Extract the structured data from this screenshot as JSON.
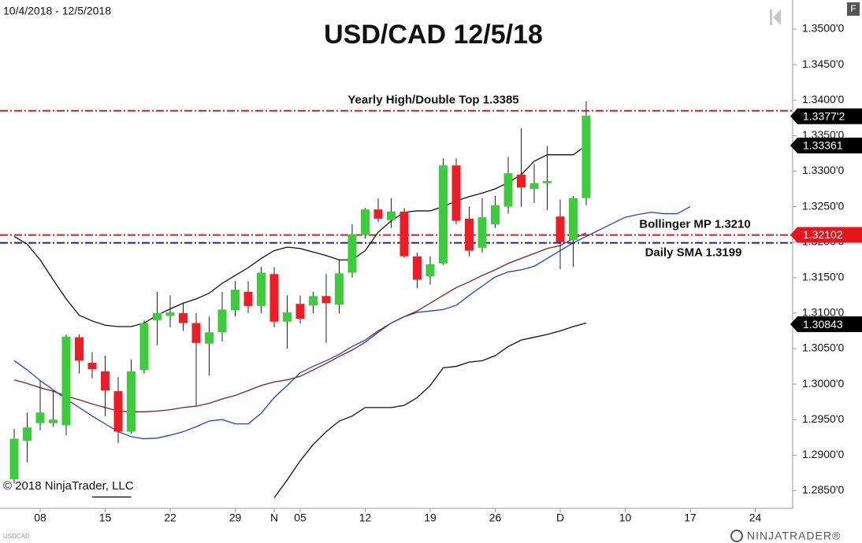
{
  "chart_data": {
    "type": "candlestick",
    "title": "USD/CAD 12/5/18",
    "date_range": "10/4/2018 - 12/5/2018",
    "copyright": "© 2018 NinjaTrader, LLC",
    "symbol": "USDCAD",
    "logo": "NINJATRADER®",
    "button": "F",
    "up_color": "#3ccc3c",
    "down_color": "#ee1c24",
    "xlim": [
      "2018-10-03",
      "2018-12-27"
    ],
    "xticks": [
      {
        "value": "2018-10-08",
        "label": "08"
      },
      {
        "value": "2018-10-15",
        "label": "15"
      },
      {
        "value": "2018-10-22",
        "label": "22"
      },
      {
        "value": "2018-10-29",
        "label": "29"
      },
      {
        "value": "2018-11-01",
        "label": "N"
      },
      {
        "value": "2018-11-05",
        "label": "05"
      },
      {
        "value": "2018-11-12",
        "label": "12"
      },
      {
        "value": "2018-11-19",
        "label": "19"
      },
      {
        "value": "2018-11-26",
        "label": "26"
      },
      {
        "value": "2018-12-03",
        "label": "D"
      },
      {
        "value": "2018-12-10",
        "label": "10"
      },
      {
        "value": "2018-12-17",
        "label": "17"
      },
      {
        "value": "2018-12-24",
        "label": "24"
      }
    ],
    "ylim": [
      1.2825,
      1.3541
    ],
    "yticks": [
      {
        "value": 1.285,
        "label": "1.2850'0"
      },
      {
        "value": 1.29,
        "label": "1.2900'0"
      },
      {
        "value": 1.295,
        "label": "1.2950'0"
      },
      {
        "value": 1.3,
        "label": "1.3000'0"
      },
      {
        "value": 1.305,
        "label": "1.3050'0"
      },
      {
        "value": 1.31,
        "label": "1.3100'0"
      },
      {
        "value": 1.315,
        "label": "1.3150'0"
      },
      {
        "value": 1.32,
        "label": "1.3200'0"
      },
      {
        "value": 1.325,
        "label": "1.3250'0"
      },
      {
        "value": 1.33,
        "label": "1.3300'0"
      },
      {
        "value": 1.335,
        "label": "1.3350'0"
      },
      {
        "value": 1.34,
        "label": "1.3400'0"
      },
      {
        "value": 1.345,
        "label": "1.3450'0"
      },
      {
        "value": 1.35,
        "label": "1.3500'0"
      }
    ],
    "x": [
      "2018-10-04",
      "2018-10-05",
      "2018-10-08",
      "2018-10-09",
      "2018-10-10",
      "2018-10-11",
      "2018-10-12",
      "2018-10-15",
      "2018-10-16",
      "2018-10-17",
      "2018-10-18",
      "2018-10-19",
      "2018-10-22",
      "2018-10-23",
      "2018-10-24",
      "2018-10-25",
      "2018-10-26",
      "2018-10-29",
      "2018-10-30",
      "2018-10-31",
      "2018-11-01",
      "2018-11-02",
      "2018-11-05",
      "2018-11-06",
      "2018-11-07",
      "2018-11-08",
      "2018-11-09",
      "2018-11-12",
      "2018-11-13",
      "2018-11-14",
      "2018-11-15",
      "2018-11-16",
      "2018-11-19",
      "2018-11-20",
      "2018-11-21",
      "2018-11-22",
      "2018-11-23",
      "2018-11-26",
      "2018-11-27",
      "2018-11-28",
      "2018-11-29",
      "2018-11-30",
      "2018-12-03",
      "2018-12-04",
      "2018-12-05",
      "2018-12-06",
      "2018-12-07",
      "2018-12-10",
      "2018-12-11",
      "2018-12-12",
      "2018-12-13",
      "2018-12-14",
      "2018-12-17"
    ],
    "ohlc": {
      "open": [
        1.2866,
        1.292,
        1.2945,
        1.2945,
        1.2942,
        1.3066,
        1.303,
        1.3018,
        1.299,
        1.2933,
        1.302,
        1.309,
        1.3096,
        1.31,
        1.3086,
        1.3057,
        1.3073,
        1.3104,
        1.313,
        1.311,
        1.3155,
        1.3088,
        1.3113,
        1.3111,
        1.3124,
        1.3112,
        1.3157,
        1.321,
        1.3246,
        1.3231,
        1.3243,
        1.318,
        1.3152,
        1.317,
        1.3308,
        1.3233,
        1.3192,
        1.3225,
        1.325,
        1.3295,
        1.3275,
        1.3283,
        1.3236,
        1.3203,
        1.3262,
        null,
        null,
        null,
        null,
        null,
        null,
        null,
        null
      ],
      "high": [
        1.2937,
        1.296,
        1.3005,
        1.299,
        1.307,
        1.307,
        1.3045,
        1.304,
        1.301,
        1.3035,
        1.309,
        1.313,
        1.3125,
        1.3115,
        1.31,
        1.3095,
        1.313,
        1.3145,
        1.3145,
        1.3165,
        1.3165,
        1.3125,
        1.3125,
        1.313,
        1.3155,
        1.3175,
        1.3225,
        1.3248,
        1.3262,
        1.3262,
        1.3248,
        1.3185,
        1.318,
        1.3318,
        1.3318,
        1.325,
        1.3262,
        1.3265,
        1.332,
        1.336,
        1.331,
        1.3335,
        1.326,
        1.3265,
        1.3398,
        null,
        null,
        null,
        null,
        null,
        null,
        null,
        null
      ],
      "low": [
        1.286,
        1.289,
        1.2935,
        1.294,
        1.2928,
        1.3015,
        1.3008,
        1.2955,
        1.2917,
        1.293,
        1.3015,
        1.3055,
        1.308,
        1.3075,
        1.297,
        1.3012,
        1.306,
        1.3095,
        1.31,
        1.31,
        1.308,
        1.305,
        1.3085,
        1.31,
        1.3058,
        1.31,
        1.315,
        1.3205,
        1.3228,
        1.322,
        1.3178,
        1.3135,
        1.314,
        1.3168,
        1.3225,
        1.318,
        1.3185,
        1.322,
        1.324,
        1.325,
        1.3255,
        1.3245,
        1.3162,
        1.3165,
        1.3252,
        null,
        null,
        null,
        null,
        null,
        null,
        null,
        null
      ],
      "close": [
        1.2923,
        1.2939,
        1.296,
        1.295,
        1.3067,
        1.3033,
        1.3021,
        1.2991,
        1.2933,
        1.3018,
        1.3086,
        1.31,
        1.3101,
        1.3086,
        1.3058,
        1.3073,
        1.3105,
        1.3133,
        1.311,
        1.3157,
        1.3088,
        1.3101,
        1.3092,
        1.3124,
        1.3114,
        1.3156,
        1.3211,
        1.3246,
        1.3233,
        1.3243,
        1.318,
        1.3147,
        1.3169,
        1.3308,
        1.323,
        1.3188,
        1.3235,
        1.3252,
        1.3297,
        1.3277,
        1.3283,
        1.3286,
        1.32,
        1.3262,
        1.3378,
        null,
        null,
        null,
        null,
        null,
        null,
        null,
        null
      ]
    },
    "lines": [
      {
        "color": "#111111",
        "values": [
          1.3208,
          1.3197,
          1.3175,
          1.3147,
          1.312,
          1.3097,
          1.3089,
          1.3083,
          1.3081,
          1.3081,
          1.3086,
          1.3097,
          1.3106,
          1.3114,
          1.312,
          1.3128,
          1.3142,
          1.3153,
          1.3164,
          1.3177,
          1.3188,
          1.3193,
          1.3191,
          1.3186,
          1.3181,
          1.3175,
          1.3175,
          1.3188,
          1.3214,
          1.323,
          1.3242,
          1.3244,
          1.3244,
          1.325,
          1.3258,
          1.3264,
          1.3269,
          1.3275,
          1.3284,
          1.3295,
          1.3314,
          1.3323,
          1.3323,
          1.3323,
          1.3336,
          null,
          null,
          null,
          null,
          null,
          null,
          null,
          null
        ]
      },
      {
        "color": "#8b1a1a",
        "values": [
          1.3006,
          1.3001,
          1.2995,
          1.299,
          1.2983,
          1.2978,
          1.2972,
          1.2967,
          1.2962,
          1.2961,
          1.2961,
          1.2962,
          1.2964,
          1.2967,
          1.2969,
          1.2973,
          1.2979,
          1.2984,
          1.2991,
          1.2998,
          1.3003,
          1.3006,
          1.3011,
          1.302,
          1.3029,
          1.3039,
          1.3048,
          1.3059,
          1.3073,
          1.3086,
          1.3095,
          1.3103,
          1.3114,
          1.3125,
          1.3136,
          1.3144,
          1.3153,
          1.3161,
          1.317,
          1.3177,
          1.3184,
          1.3191,
          1.3195,
          1.3205,
          1.3213,
          null,
          null,
          null,
          null,
          null,
          null,
          null,
          null
        ]
      },
      {
        "color": "#1f3fd6",
        "values": [
          1.3033,
          1.302,
          1.3005,
          1.2992,
          1.2979,
          1.2967,
          1.2955,
          1.2944,
          1.2933,
          1.2926,
          1.2923,
          1.2924,
          1.2928,
          1.2933,
          1.294,
          1.2948,
          1.295,
          1.2944,
          1.2944,
          1.2959,
          1.2981,
          1.2998,
          1.3016,
          1.3025,
          1.3033,
          1.3042,
          1.3053,
          1.3062,
          1.3075,
          1.3086,
          1.3095,
          1.3101,
          1.3103,
          1.3105,
          1.3111,
          1.3125,
          1.3138,
          1.3151,
          1.3158,
          1.3161,
          1.3166,
          1.3177,
          1.3188,
          1.3199,
          1.3208,
          1.3217,
          1.3226,
          1.3235,
          1.3239,
          1.3242,
          1.324,
          1.324,
          1.325
        ]
      },
      {
        "color": "#111111",
        "values": [
          null,
          null,
          null,
          null,
          null,
          null,
          1.2841,
          1.2841,
          1.2841,
          1.2841,
          null,
          null,
          null,
          null,
          null,
          null,
          null,
          null,
          null,
          null,
          1.284,
          1.2865,
          1.2892,
          1.2915,
          1.2933,
          1.2948,
          1.2955,
          1.2967,
          1.2967,
          1.2967,
          1.297,
          1.2981,
          1.2998,
          1.3023,
          1.3025,
          1.3031,
          1.3033,
          1.304,
          1.3053,
          1.3062,
          1.3066,
          1.307,
          1.3075,
          1.3081,
          1.3086,
          null,
          null,
          null,
          null,
          null,
          null,
          null,
          null
        ]
      }
    ],
    "hlines": [
      {
        "value": 1.3385,
        "color": "#e8141c",
        "label": "Yearly High/Double Top 1.3385"
      },
      {
        "value": 1.321,
        "color": "#e8141c",
        "label": "Bollinger MP 1.3210"
      },
      {
        "value": 1.3199,
        "color": "#1a1ab8",
        "label": "Daily SMA 1.3199"
      }
    ],
    "price_markers": [
      {
        "value": 1.33772,
        "label": "1.3377'2",
        "color": "#000000"
      },
      {
        "value": 1.33361,
        "label": "1.33361",
        "color": "#000000"
      },
      {
        "value": 1.32102,
        "label": "1.32102",
        "color": "#e8141c"
      },
      {
        "value": 1.30843,
        "label": "1.30843",
        "color": "#000000"
      }
    ]
  }
}
